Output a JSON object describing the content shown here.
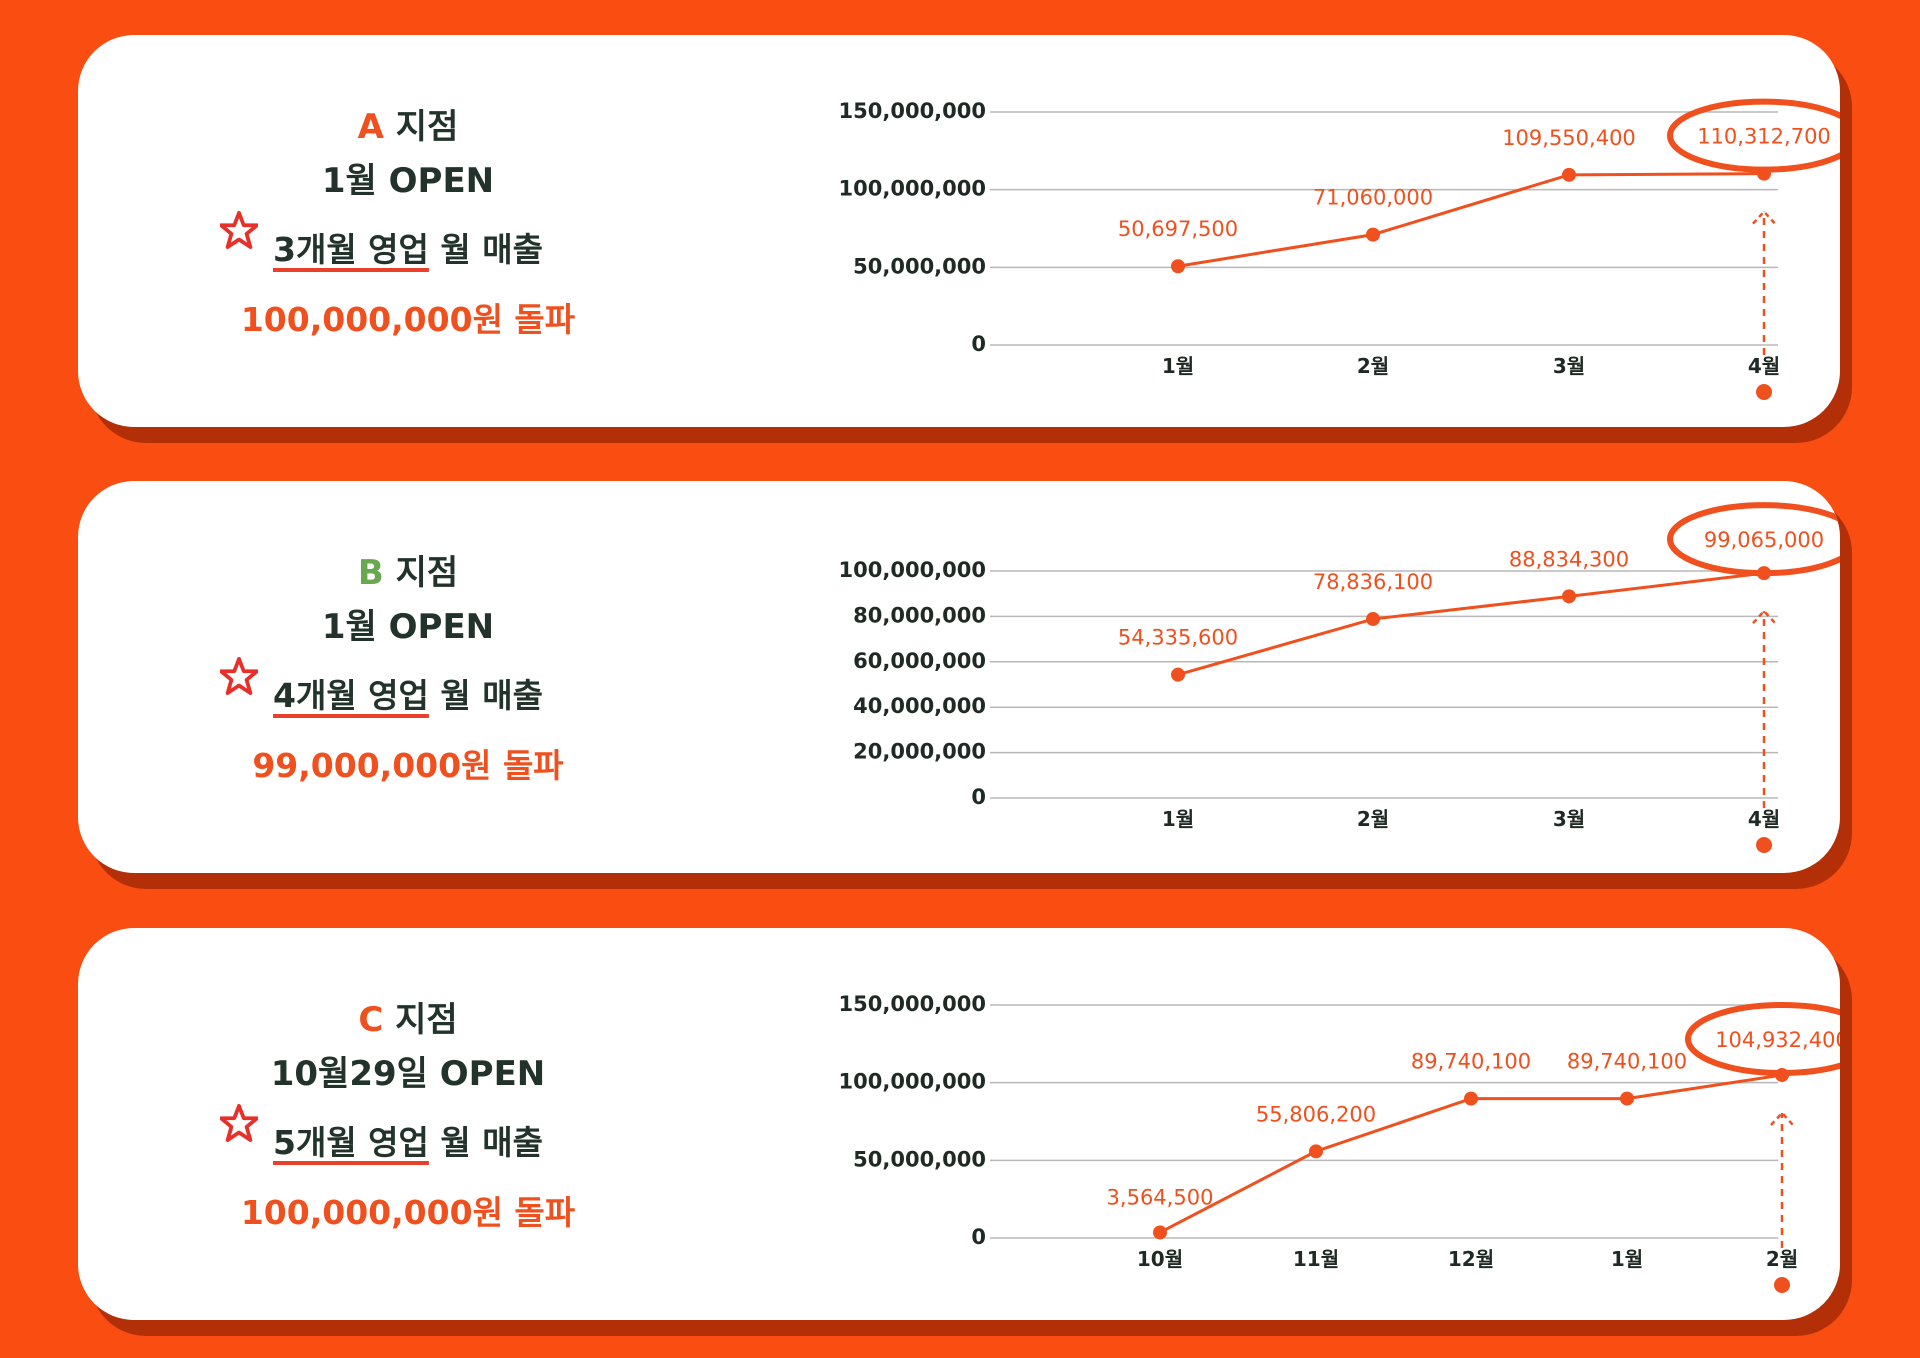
{
  "theme": {
    "background": "#fa4d12",
    "accent": "#f0501e",
    "text": "#22332b",
    "branch_b": "#6aa84f"
  },
  "branches": [
    {
      "letter": "A",
      "name": "지점",
      "open": "1월 OPEN",
      "period_prefix": "3개월 영업",
      "period_suffix": "월 매출",
      "total": "100,000,000원 돌파",
      "star_icon": "red-star-icon"
    },
    {
      "letter": "B",
      "name": "지점",
      "open": "1월 OPEN",
      "period_prefix": "4개월 영업",
      "period_suffix": "월 매출",
      "total": "99,000,000원 돌파",
      "star_icon": "red-star-icon"
    },
    {
      "letter": "C",
      "name": "지점",
      "open": "10월29일 OPEN",
      "period_prefix": "5개월 영업",
      "period_suffix": "월 매출",
      "total": "100,000,000원 돌파",
      "star_icon": "red-star-icon"
    }
  ],
  "chart_data": [
    {
      "type": "line",
      "categories": [
        "1월",
        "2월",
        "3월",
        "4월"
      ],
      "series": [
        {
          "values": [
            50697500,
            71060000,
            109550400,
            110312700
          ]
        }
      ],
      "data_labels": [
        "50,697,500",
        "71,060,000",
        "109,550,400",
        "110,312,700"
      ],
      "yticks": [
        0,
        50000000,
        100000000,
        150000000
      ],
      "ytick_labels": [
        "0",
        "50,000,000",
        "100,000,000",
        "150,000,000"
      ],
      "ylim": [
        0,
        150000000
      ],
      "highlight_index": 3,
      "grid": true,
      "color": "#f0501e"
    },
    {
      "type": "line",
      "categories": [
        "1월",
        "2월",
        "3월",
        "4월"
      ],
      "series": [
        {
          "values": [
            54335600,
            78836100,
            88834300,
            99065000
          ]
        }
      ],
      "data_labels": [
        "54,335,600",
        "78,836,100",
        "88,834,300",
        "99,065,000"
      ],
      "yticks": [
        0,
        20000000,
        40000000,
        60000000,
        80000000,
        100000000
      ],
      "ytick_labels": [
        "0",
        "20,000,000",
        "40,000,000",
        "60,000,000",
        "80,000,000",
        "100,000,000"
      ],
      "ylim": [
        0,
        100000000
      ],
      "highlight_index": 3,
      "grid": true,
      "color": "#f0501e"
    },
    {
      "type": "line",
      "categories": [
        "10월",
        "11월",
        "12월",
        "1월",
        "2월"
      ],
      "series": [
        {
          "values": [
            3564500,
            55806200,
            89740100,
            89740100,
            104932400
          ]
        }
      ],
      "data_labels": [
        "3,564,500",
        "55,806,200",
        "89,740,100",
        "89,740,100",
        "104,932,400"
      ],
      "yticks": [
        0,
        50000000,
        100000000,
        150000000
      ],
      "ytick_labels": [
        "0",
        "50,000,000",
        "100,000,000",
        "150,000,000"
      ],
      "ylim": [
        0,
        150000000
      ],
      "highlight_index": 4,
      "grid": true,
      "color": "#f0501e"
    }
  ]
}
